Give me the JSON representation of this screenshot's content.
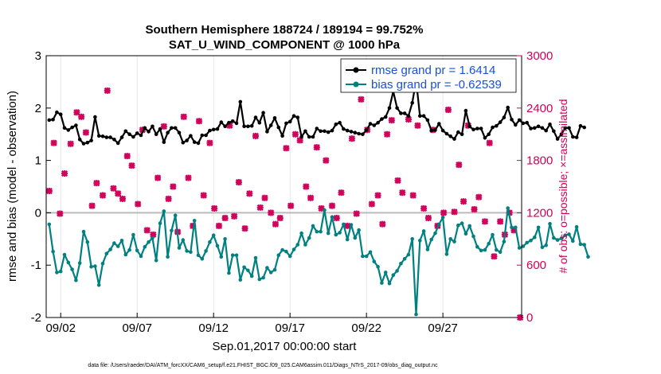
{
  "chart_data": {
    "type": "line",
    "title": "Southern Hemisphere 188724 / 189194 = 99.752%",
    "subtitle": "SAT_U_WIND_COMPONENT @ 1000 hPa",
    "xlabel": "Sep.01,2017 00:00:00 start",
    "ylabel": "rmse and bias (model - observation)",
    "ylabel_right": "# of obs: o=possible; ×=assimilated",
    "footnote": "data file: /Users/raeder/DAI/ATM_forcXX/CAM6_setup/f.e21.FHIST_BGC.f09_025.CAM6assim.011/Diags_NTrS_2017-09/obs_diag_output.nc",
    "xlim": [
      0.3,
      31.4
    ],
    "ylim": [
      -2,
      3
    ],
    "ylim_right": [
      0,
      3000
    ],
    "x_ticks": [
      1.25,
      6.25,
      11.25,
      16.25,
      21.25,
      26.25
    ],
    "x_tick_labels": [
      "09/02",
      "09/07",
      "09/12",
      "09/17",
      "09/22",
      "09/27"
    ],
    "y_ticks": [
      -2,
      -1,
      0,
      1,
      2,
      3
    ],
    "y_tick_labels": [
      "-2",
      "-1",
      "0",
      "1",
      "2",
      "3"
    ],
    "y_ticks_right": [
      0,
      600,
      1200,
      1800,
      2400,
      3000
    ],
    "y_tick_labels_right": [
      "0",
      "600",
      "1200",
      "1800",
      "2400",
      "3000"
    ],
    "x_start": 0.5,
    "x_step": 0.25,
    "series": [
      {
        "name": "rmse grand pr = 1.6414",
        "color": "#000000",
        "values": [
          1.77,
          1.78,
          1.92,
          1.88,
          1.62,
          1.58,
          1.63,
          1.67,
          1.4,
          1.32,
          1.34,
          1.38,
          1.83,
          1.47,
          1.46,
          1.44,
          1.44,
          1.4,
          1.33,
          1.44,
          1.56,
          1.5,
          1.45,
          1.52,
          1.48,
          1.62,
          1.55,
          1.65,
          1.5,
          1.6,
          1.35,
          1.53,
          1.62,
          1.62,
          1.53,
          1.34,
          1.38,
          1.47,
          1.35,
          1.33,
          1.48,
          1.48,
          1.57,
          1.59,
          1.6,
          1.73,
          1.65,
          1.72,
          1.75,
          1.71,
          2.12,
          1.65,
          1.65,
          1.66,
          1.82,
          1.72,
          1.91,
          1.55,
          1.67,
          1.81,
          1.63,
          1.47,
          1.71,
          1.74,
          1.85,
          1.82,
          1.45,
          1.56,
          1.45,
          1.45,
          1.61,
          1.56,
          1.56,
          1.54,
          1.57,
          1.69,
          1.72,
          1.6,
          1.57,
          1.55,
          1.53,
          1.51,
          1.5,
          1.58,
          1.7,
          1.67,
          1.72,
          1.79,
          1.83,
          2.0,
          2.32,
          2.0,
          1.9,
          1.9,
          1.85,
          2.1,
          2.53,
          1.85,
          1.85,
          1.77,
          1.57,
          1.58,
          1.7,
          1.57,
          1.51,
          1.46,
          1.41,
          1.54,
          1.5,
          1.95,
          1.65,
          1.59,
          1.61,
          1.61,
          1.43,
          1.5,
          1.63,
          1.66,
          1.73,
          1.82,
          2.01,
          1.78,
          1.68,
          1.77,
          1.71,
          1.72,
          1.61,
          1.62,
          1.65,
          1.62,
          1.57,
          1.69,
          1.56,
          1.41,
          1.5,
          1.62,
          1.62,
          1.45,
          1.44,
          1.66,
          1.63
        ]
      },
      {
        "name": "bias grand pr = -0.62539",
        "color": "#008080",
        "values": [
          -0.22,
          -0.74,
          -1.14,
          -1.12,
          -0.8,
          -0.95,
          -1.08,
          -1.29,
          -0.96,
          -0.36,
          -0.56,
          -1.03,
          -1.02,
          -1.38,
          -0.97,
          -0.78,
          -0.7,
          -0.58,
          -0.64,
          -0.53,
          -0.8,
          -0.71,
          -0.42,
          -0.72,
          -0.83,
          -0.65,
          -0.56,
          -0.48,
          -0.91,
          -0.2,
          0.03,
          -0.84,
          -0.34,
          -0.05,
          -0.67,
          -0.52,
          -0.73,
          -0.75,
          -0.15,
          -0.81,
          -0.88,
          -0.73,
          -0.56,
          -0.43,
          -0.63,
          -0.84,
          -0.5,
          -1.15,
          -0.81,
          -0.81,
          -1.28,
          -1.04,
          -1.1,
          -1.21,
          -0.86,
          -1.27,
          -1.24,
          -1.05,
          -1.14,
          -1.09,
          -0.81,
          -0.71,
          -0.74,
          -0.83,
          -0.7,
          -0.61,
          -0.39,
          -0.61,
          -0.48,
          -0.25,
          -0.36,
          -0.36,
          0.05,
          -0.39,
          -0.08,
          -0.42,
          -0.38,
          -0.22,
          -0.51,
          -0.23,
          -0.48,
          -0.33,
          -0.83,
          -0.83,
          -0.75,
          -0.93,
          -1.03,
          -1.34,
          -1.14,
          -1.35,
          -1.19,
          -1.11,
          -0.97,
          -0.88,
          -0.8,
          -0.5,
          -1.94,
          -0.53,
          -0.35,
          -0.7,
          -0.51,
          -0.39,
          -0.22,
          -0.09,
          -0.79,
          -0.5,
          -0.55,
          -0.24,
          -0.2,
          -0.4,
          -0.25,
          -0.45,
          -0.65,
          -0.72,
          -0.71,
          -0.59,
          -0.42,
          -0.71,
          -0.75,
          -0.55,
          0.09,
          -0.28,
          -0.28,
          -0.67,
          -0.64,
          -0.57,
          -0.53,
          -0.47,
          -0.28,
          -0.66,
          -0.62,
          -0.21,
          -0.48,
          -0.52,
          -0.49,
          -0.43,
          -0.41,
          -0.54,
          -0.27,
          -0.6,
          -0.61,
          -0.84
        ]
      }
    ],
    "obs_assimilated": {
      "name": "assimilated",
      "color": "#d1005a",
      "x": [
        0.5,
        0.8,
        1.2,
        1.5,
        1.9,
        2.3,
        2.6,
        2.9,
        3.3,
        3.6,
        4.0,
        4.3,
        4.7,
        5.0,
        5.3,
        5.6,
        5.9,
        6.3,
        6.6,
        6.9,
        7.3,
        7.6,
        8.0,
        8.3,
        8.6,
        8.9,
        9.3,
        9.6,
        9.9,
        10.3,
        10.6,
        11.0,
        11.3,
        11.6,
        12.0,
        12.3,
        12.6,
        12.9,
        13.3,
        13.6,
        14.0,
        14.3,
        14.6,
        15.0,
        15.3,
        15.6,
        16.0,
        16.3,
        16.6,
        16.9,
        17.3,
        17.6,
        18.0,
        18.3,
        18.6,
        19.0,
        19.3,
        19.6,
        20.0,
        20.3,
        20.6,
        20.9,
        21.3,
        21.6,
        22.0,
        22.3,
        22.6,
        22.9,
        23.3,
        23.6,
        24.0,
        24.3,
        24.6,
        25.0,
        25.3,
        25.6,
        25.9,
        26.3,
        26.6,
        27.0,
        27.3,
        27.6,
        27.9,
        28.3,
        28.6,
        29.0,
        29.3,
        29.6,
        30.0,
        30.3,
        30.6,
        30.9,
        31.3
      ],
      "values": [
        1450,
        2000,
        1190,
        1650,
        1990,
        2350,
        2300,
        2120,
        1280,
        1540,
        1400,
        2600,
        1480,
        1420,
        1360,
        1850,
        1740,
        1300,
        2150,
        1000,
        950,
        1600,
        2190,
        1360,
        1500,
        980,
        2300,
        1600,
        1050,
        2250,
        1400,
        2000,
        1250,
        1050,
        1140,
        2200,
        1160,
        1550,
        1020,
        1420,
        2080,
        1260,
        1370,
        1200,
        1070,
        1140,
        1940,
        1280,
        2100,
        2030,
        1500,
        1370,
        1950,
        1250,
        1800,
        1280,
        1140,
        1430,
        1050,
        2050,
        1190,
        2500,
        2150,
        1300,
        1400,
        1070,
        2100,
        2260,
        1570,
        1430,
        2270,
        1400,
        2200,
        1250,
        1140,
        2150,
        1050,
        1200,
        2380,
        1210,
        1750,
        1330,
        2200,
        1240,
        1380,
        1100,
        2000,
        700,
        1100,
        950,
        1200,
        1000,
        0
      ]
    }
  }
}
